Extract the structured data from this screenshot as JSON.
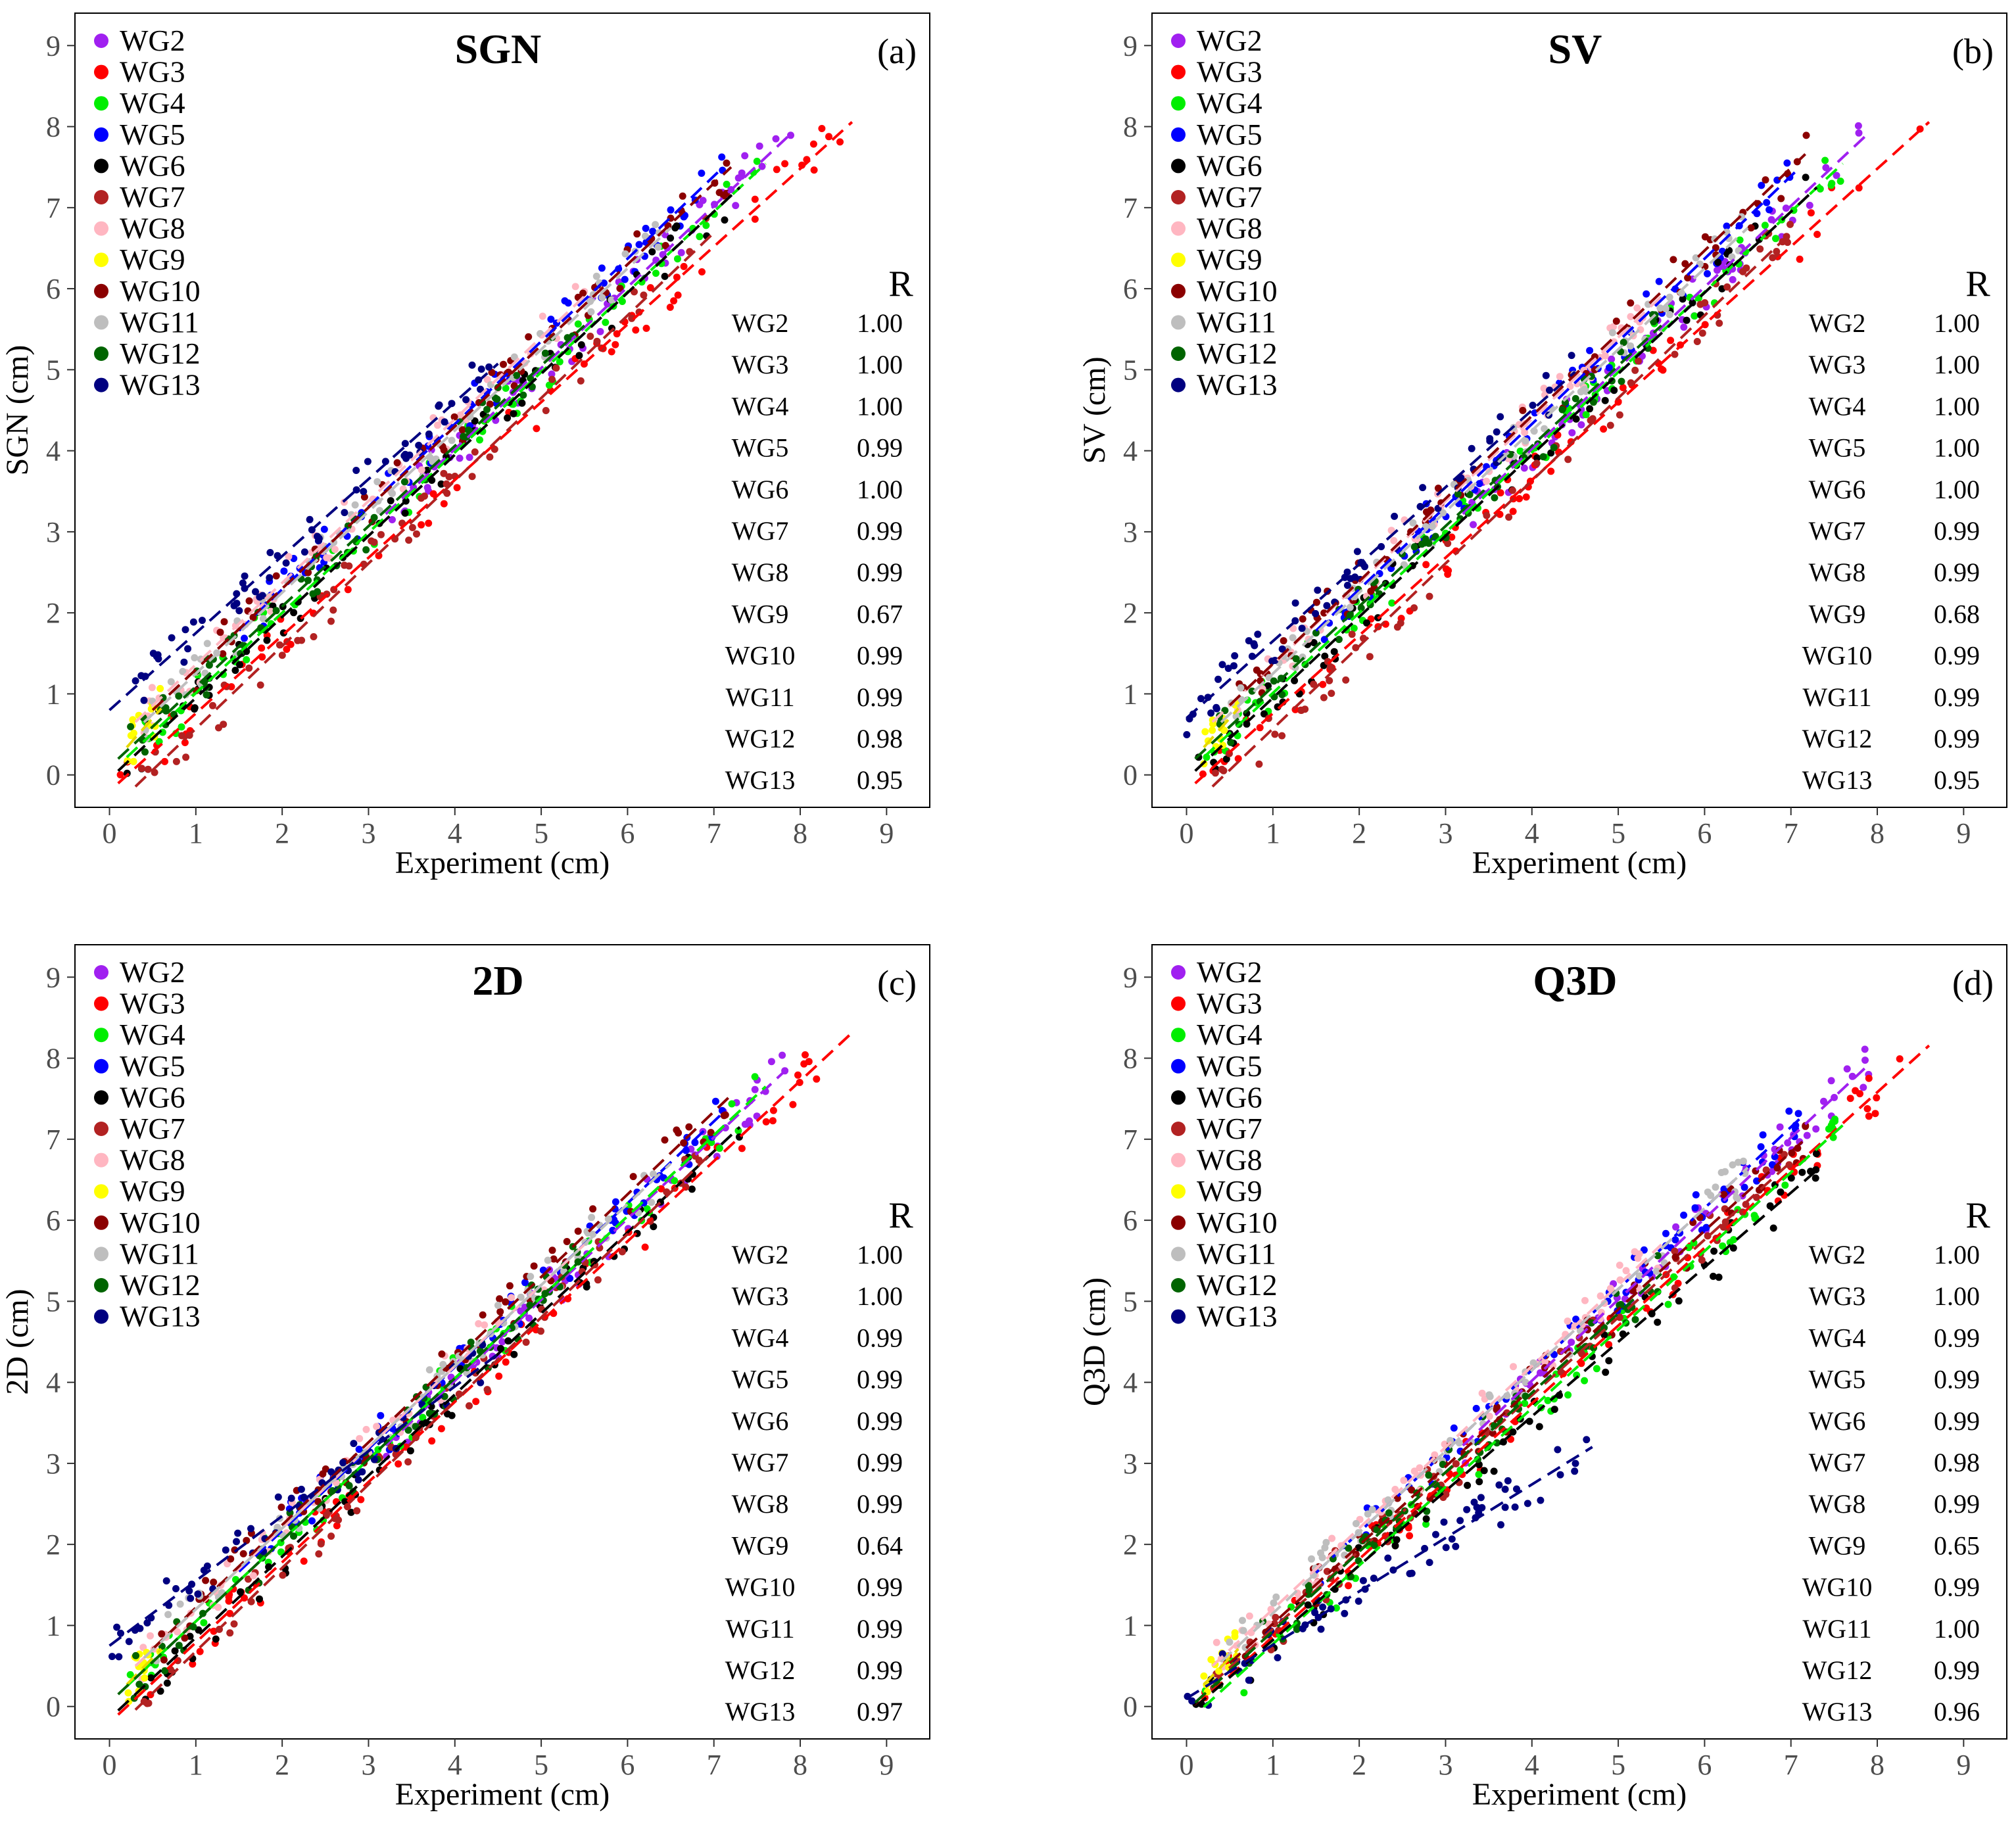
{
  "figure": {
    "description_note": ""
  },
  "legend_groups": [
    "WG2",
    "WG3",
    "WG4",
    "WG5",
    "WG6",
    "WG7",
    "WG8",
    "WG9",
    "WG10",
    "WG11",
    "WG12",
    "WG13"
  ],
  "colors": {
    "WG2": "#a020f0",
    "WG3": "#ff0000",
    "WG4": "#00ee00",
    "WG5": "#0000ff",
    "WG6": "#000000",
    "WG7": "#b22222",
    "WG8": "#ffb6c1",
    "WG9": "#ffff00",
    "WG10": "#8b0000",
    "WG11": "#bebebe",
    "WG12": "#006400",
    "WG13": "#000080"
  },
  "chart_data": [
    {
      "type": "scatter",
      "panel": "(a)",
      "title": "SGN",
      "xlabel": "Experiment (cm)",
      "ylabel": "SGN (cm)",
      "xlim": [
        -0.4,
        9.5
      ],
      "ylim": [
        -0.4,
        9.4
      ],
      "xticks": [
        0,
        1,
        2,
        3,
        4,
        5,
        6,
        7,
        8,
        9
      ],
      "yticks": [
        0,
        1,
        2,
        3,
        4,
        5,
        6,
        7,
        8,
        9
      ],
      "r_header": "R",
      "series": [
        {
          "name": "WG2",
          "r": "1.00",
          "x_range": [
            3.2,
            7.9
          ],
          "fit": [
            1.0,
            0.02
          ]
        },
        {
          "name": "WG3",
          "r": "1.00",
          "x_range": [
            0.1,
            8.6
          ],
          "fit": [
            0.96,
            -0.2
          ]
        },
        {
          "name": "WG4",
          "r": "1.00",
          "x_range": [
            0.2,
            7.6
          ],
          "fit": [
            0.99,
            0.02
          ]
        },
        {
          "name": "WG5",
          "r": "0.99",
          "x_range": [
            1.5,
            7.1
          ],
          "fit": [
            1.02,
            0.25
          ]
        },
        {
          "name": "WG6",
          "r": "1.00",
          "x_range": [
            0.1,
            7.3
          ],
          "fit": [
            1.0,
            -0.05
          ]
        },
        {
          "name": "WG7",
          "r": "0.99",
          "x_range": [
            0.3,
            7.0
          ],
          "fit": [
            1.02,
            -0.45
          ]
        },
        {
          "name": "WG8",
          "r": "0.99",
          "x_range": [
            0.3,
            5.5
          ],
          "fit": [
            1.01,
            0.35
          ]
        },
        {
          "name": "WG9",
          "r": "0.67",
          "x_range": [
            0.2,
            0.6
          ],
          "fit": [
            1.2,
            0.1
          ]
        },
        {
          "name": "WG10",
          "r": "0.99",
          "x_range": [
            0.5,
            7.2
          ],
          "fit": [
            1.0,
            0.3
          ]
        },
        {
          "name": "WG11",
          "r": "0.99",
          "x_range": [
            0.4,
            6.5
          ],
          "fit": [
            1.0,
            0.25
          ]
        },
        {
          "name": "WG12",
          "r": "0.98",
          "x_range": [
            0.1,
            5.5
          ],
          "fit": [
            0.99,
            0.1
          ]
        },
        {
          "name": "WG13",
          "r": "0.95",
          "x_range": [
            0.0,
            4.5
          ],
          "fit": [
            0.95,
            0.8
          ]
        }
      ]
    },
    {
      "type": "scatter",
      "panel": "(b)",
      "title": "SV",
      "xlabel": "Experiment (cm)",
      "ylabel": "SV (cm)",
      "xlim": [
        -0.4,
        9.5
      ],
      "ylim": [
        -0.4,
        9.4
      ],
      "xticks": [
        0,
        1,
        2,
        3,
        4,
        5,
        6,
        7,
        8,
        9
      ],
      "yticks": [
        0,
        1,
        2,
        3,
        4,
        5,
        6,
        7,
        8,
        9
      ],
      "r_header": "R",
      "series": [
        {
          "name": "WG2",
          "r": "1.00",
          "x_range": [
            3.2,
            7.9
          ],
          "fit": [
            1.0,
            0.02
          ]
        },
        {
          "name": "WG3",
          "r": "1.00",
          "x_range": [
            0.1,
            8.6
          ],
          "fit": [
            0.96,
            -0.2
          ]
        },
        {
          "name": "WG4",
          "r": "1.00",
          "x_range": [
            0.2,
            7.6
          ],
          "fit": [
            0.99,
            0.02
          ]
        },
        {
          "name": "WG5",
          "r": "1.00",
          "x_range": [
            1.5,
            7.1
          ],
          "fit": [
            1.02,
            0.25
          ]
        },
        {
          "name": "WG6",
          "r": "1.00",
          "x_range": [
            0.1,
            7.3
          ],
          "fit": [
            1.0,
            -0.05
          ]
        },
        {
          "name": "WG7",
          "r": "0.99",
          "x_range": [
            0.3,
            7.0
          ],
          "fit": [
            1.02,
            -0.45
          ]
        },
        {
          "name": "WG8",
          "r": "0.99",
          "x_range": [
            0.3,
            5.5
          ],
          "fit": [
            1.01,
            0.35
          ]
        },
        {
          "name": "WG9",
          "r": "0.68",
          "x_range": [
            0.2,
            0.6
          ],
          "fit": [
            1.2,
            0.1
          ]
        },
        {
          "name": "WG10",
          "r": "0.99",
          "x_range": [
            0.5,
            7.2
          ],
          "fit": [
            1.02,
            0.35
          ]
        },
        {
          "name": "WG11",
          "r": "0.99",
          "x_range": [
            0.4,
            6.5
          ],
          "fit": [
            1.0,
            0.25
          ]
        },
        {
          "name": "WG12",
          "r": "0.99",
          "x_range": [
            0.1,
            5.5
          ],
          "fit": [
            0.99,
            0.1
          ]
        },
        {
          "name": "WG13",
          "r": "0.95",
          "x_range": [
            0.0,
            4.5
          ],
          "fit": [
            0.95,
            0.7
          ]
        }
      ]
    },
    {
      "type": "scatter",
      "panel": "(c)",
      "title": "2D",
      "xlabel": "Experiment (cm)",
      "ylabel": "2D (cm)",
      "xlim": [
        -0.4,
        9.5
      ],
      "ylim": [
        -0.4,
        9.4
      ],
      "xticks": [
        0,
        1,
        2,
        3,
        4,
        5,
        6,
        7,
        8,
        9
      ],
      "yticks": [
        0,
        1,
        2,
        3,
        4,
        5,
        6,
        7,
        8,
        9
      ],
      "r_header": "R",
      "series": [
        {
          "name": "WG2",
          "r": "1.00",
          "x_range": [
            3.2,
            7.9
          ],
          "fit": [
            1.0,
            0.02
          ]
        },
        {
          "name": "WG3",
          "r": "1.00",
          "x_range": [
            0.1,
            8.6
          ],
          "fit": [
            0.99,
            -0.2
          ]
        },
        {
          "name": "WG4",
          "r": "0.99",
          "x_range": [
            0.2,
            7.6
          ],
          "fit": [
            1.0,
            0.05
          ]
        },
        {
          "name": "WG5",
          "r": "0.99",
          "x_range": [
            1.5,
            7.1
          ],
          "fit": [
            1.01,
            0.15
          ]
        },
        {
          "name": "WG6",
          "r": "0.99",
          "x_range": [
            0.1,
            7.3
          ],
          "fit": [
            1.0,
            -0.15
          ]
        },
        {
          "name": "WG7",
          "r": "0.99",
          "x_range": [
            0.3,
            7.0
          ],
          "fit": [
            1.03,
            -0.35
          ]
        },
        {
          "name": "WG8",
          "r": "0.99",
          "x_range": [
            0.3,
            5.5
          ],
          "fit": [
            1.0,
            0.2
          ]
        },
        {
          "name": "WG9",
          "r": "0.64",
          "x_range": [
            0.2,
            0.6
          ],
          "fit": [
            1.1,
            0.05
          ]
        },
        {
          "name": "WG10",
          "r": "0.99",
          "x_range": [
            0.5,
            7.2
          ],
          "fit": [
            1.02,
            0.2
          ]
        },
        {
          "name": "WG11",
          "r": "0.99",
          "x_range": [
            0.4,
            6.5
          ],
          "fit": [
            1.0,
            0.2
          ]
        },
        {
          "name": "WG12",
          "r": "0.99",
          "x_range": [
            0.1,
            5.5
          ],
          "fit": [
            1.0,
            0.05
          ]
        },
        {
          "name": "WG13",
          "r": "0.97",
          "x_range": [
            0.0,
            4.5
          ],
          "fit": [
            0.8,
            0.75
          ]
        }
      ]
    },
    {
      "type": "scatter",
      "panel": "(d)",
      "title": "Q3D",
      "xlabel": "Experiment (cm)",
      "ylabel": "Q3D (cm)",
      "xlim": [
        -0.4,
        9.5
      ],
      "ylim": [
        -0.4,
        9.4
      ],
      "xticks": [
        0,
        1,
        2,
        3,
        4,
        5,
        6,
        7,
        8,
        9
      ],
      "yticks": [
        0,
        1,
        2,
        3,
        4,
        5,
        6,
        7,
        8,
        9
      ],
      "r_header": "R",
      "series": [
        {
          "name": "WG2",
          "r": "1.00",
          "x_range": [
            3.2,
            7.9
          ],
          "fit": [
            1.0,
            0.02
          ]
        },
        {
          "name": "WG3",
          "r": "1.00",
          "x_range": [
            0.1,
            8.6
          ],
          "fit": [
            0.96,
            -0.1
          ]
        },
        {
          "name": "WG4",
          "r": "0.99",
          "x_range": [
            0.2,
            7.6
          ],
          "fit": [
            0.97,
            -0.2
          ]
        },
        {
          "name": "WG5",
          "r": "0.99",
          "x_range": [
            1.5,
            7.1
          ],
          "fit": [
            1.0,
            0.15
          ]
        },
        {
          "name": "WG6",
          "r": "0.99",
          "x_range": [
            0.1,
            7.3
          ],
          "fit": [
            0.92,
            -0.1
          ]
        },
        {
          "name": "WG7",
          "r": "0.98",
          "x_range": [
            0.3,
            7.0
          ],
          "fit": [
            0.96,
            0.0
          ]
        },
        {
          "name": "WG8",
          "r": "0.99",
          "x_range": [
            0.3,
            5.5
          ],
          "fit": [
            1.0,
            0.2
          ]
        },
        {
          "name": "WG9",
          "r": "0.65",
          "x_range": [
            0.2,
            0.6
          ],
          "fit": [
            1.1,
            0.05
          ]
        },
        {
          "name": "WG10",
          "r": "0.99",
          "x_range": [
            0.5,
            7.2
          ],
          "fit": [
            0.97,
            0.05
          ]
        },
        {
          "name": "WG11",
          "r": "1.00",
          "x_range": [
            0.4,
            6.5
          ],
          "fit": [
            1.0,
            0.15
          ]
        },
        {
          "name": "WG12",
          "r": "0.99",
          "x_range": [
            0.1,
            5.5
          ],
          "fit": [
            0.98,
            -0.05
          ]
        },
        {
          "name": "WG13",
          "r": "0.96",
          "x_range": [
            0.0,
            4.7
          ],
          "fit": [
            0.66,
            0.1
          ]
        }
      ]
    }
  ]
}
